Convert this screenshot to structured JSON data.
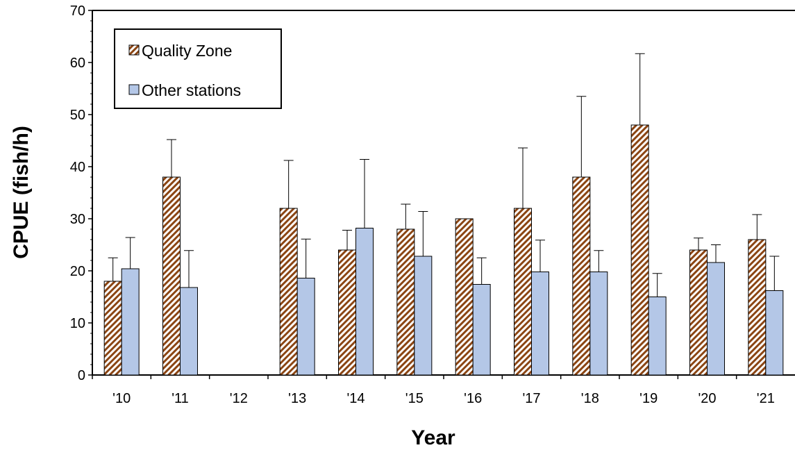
{
  "chart_data": {
    "type": "bar",
    "title": "",
    "xlabel": "Year",
    "ylabel": "CPUE (fish/h)",
    "ylim": [
      0,
      70
    ],
    "yticks": [
      0,
      10,
      20,
      30,
      40,
      50,
      60,
      70
    ],
    "categories": [
      "'10",
      "'11",
      "'12",
      "'13",
      "'14",
      "'15",
      "'16",
      "'17",
      "'18",
      "'19",
      "'20",
      "'21"
    ],
    "series": [
      {
        "name": "Quality Zone",
        "values": [
          18,
          38,
          null,
          32,
          24,
          28,
          30,
          32,
          38,
          48,
          24,
          26
        ],
        "error_upper": [
          22.5,
          45.2,
          null,
          41.2,
          27.8,
          32.8,
          30,
          43.6,
          53.5,
          61.7,
          26.3,
          30.8
        ],
        "pattern": "diagonal-hatch",
        "color": "#8B4513"
      },
      {
        "name": "Other stations",
        "values": [
          20.4,
          16.8,
          null,
          18.6,
          28.2,
          22.8,
          17.4,
          19.8,
          19.8,
          15,
          21.6,
          16.2
        ],
        "error_upper": [
          26.4,
          23.9,
          null,
          26.1,
          41.4,
          31.4,
          22.5,
          25.9,
          23.9,
          19.5,
          25,
          22.8
        ],
        "color": "#B4C7E7"
      }
    ],
    "legend_position": "top-left",
    "grid": false
  }
}
